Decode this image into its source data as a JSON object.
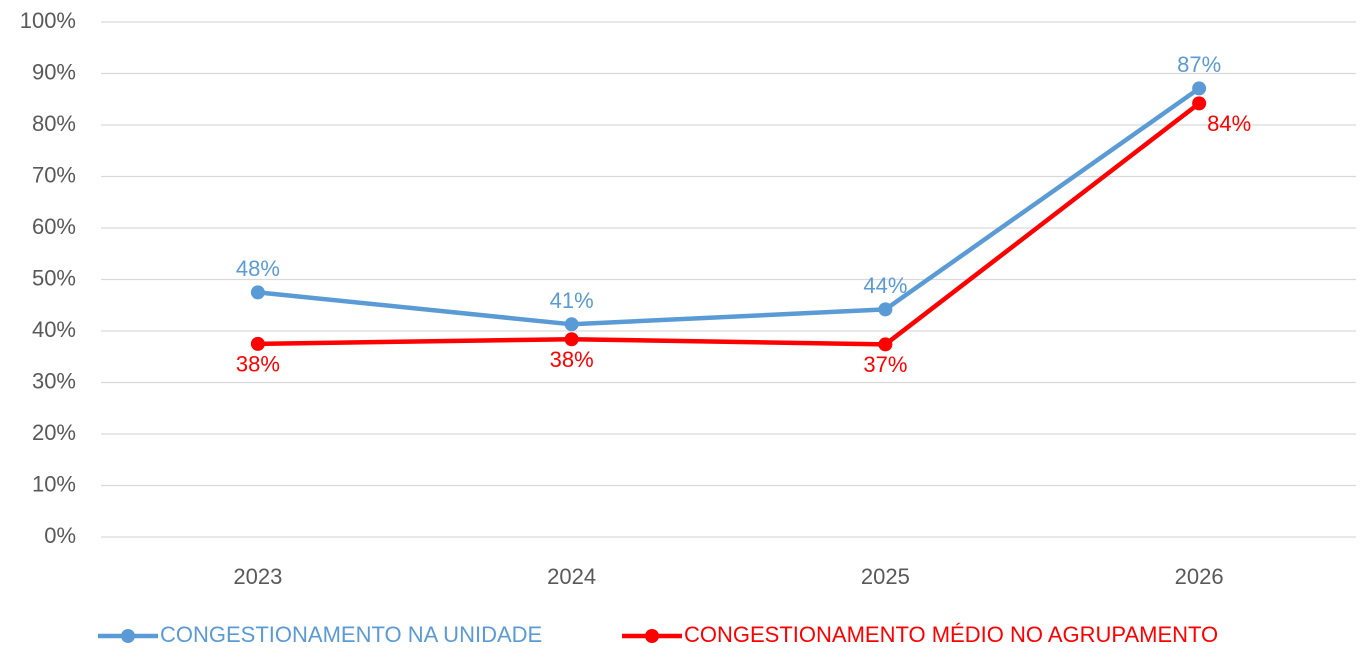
{
  "chart_data": {
    "type": "line",
    "categories": [
      "2023",
      "2024",
      "2025",
      "2026"
    ],
    "series": [
      {
        "name": "CONGESTIONAMENTO NA UNIDADE",
        "color": "#5b9bd5",
        "values": [
          47.5,
          41.3,
          44.2,
          87.1
        ],
        "value_labels": [
          "48%",
          "41%",
          "44%",
          "87%"
        ]
      },
      {
        "name": "CONGESTIONAMENTO MÉDIO NO AGRUPAMENTO",
        "color": "#ff0000",
        "values": [
          37.5,
          38.4,
          37.4,
          84.2
        ],
        "value_labels": [
          "38%",
          "38%",
          "37%",
          "84%"
        ]
      }
    ],
    "ylim": [
      0,
      100
    ],
    "yticks": [
      {
        "value": 0,
        "label": "0%"
      },
      {
        "value": 10,
        "label": "10%"
      },
      {
        "value": 20,
        "label": "20%"
      },
      {
        "value": 30,
        "label": "30%"
      },
      {
        "value": 40,
        "label": "40%"
      },
      {
        "value": 50,
        "label": "50%"
      },
      {
        "value": 60,
        "label": "60%"
      },
      {
        "value": 70,
        "label": "70%"
      },
      {
        "value": 80,
        "label": "80%"
      },
      {
        "value": 90,
        "label": "90%"
      },
      {
        "value": 100,
        "label": "100%"
      }
    ],
    "grid": true
  }
}
